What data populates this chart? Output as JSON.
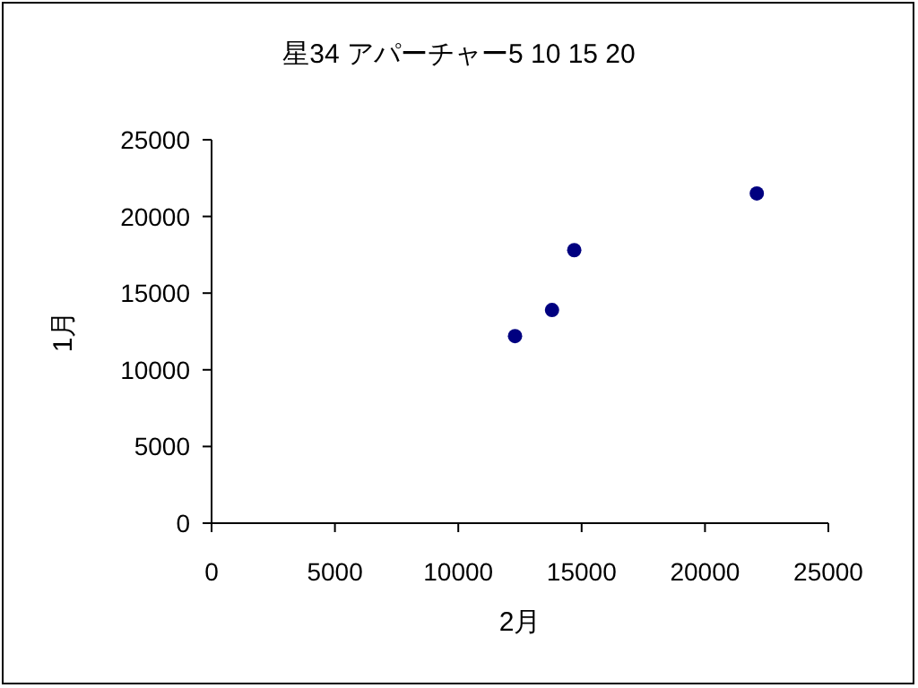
{
  "chart_data": {
    "type": "scatter",
    "title": "星34 アパーチャー5 10 15 20",
    "xlabel": "2月",
    "ylabel": "1月",
    "x": [
      12300,
      13800,
      14700,
      22100
    ],
    "series": [
      {
        "color": "#000080",
        "values": [
          12200,
          13900,
          17800,
          21500
        ]
      }
    ],
    "xlim": [
      0,
      25000
    ],
    "xticks": [
      0,
      5000,
      10000,
      15000,
      20000,
      25000
    ],
    "ylim": [
      0,
      25000
    ],
    "yticks": [
      0,
      5000,
      10000,
      15000,
      20000,
      25000
    ],
    "marker": "circle",
    "grid": false
  }
}
